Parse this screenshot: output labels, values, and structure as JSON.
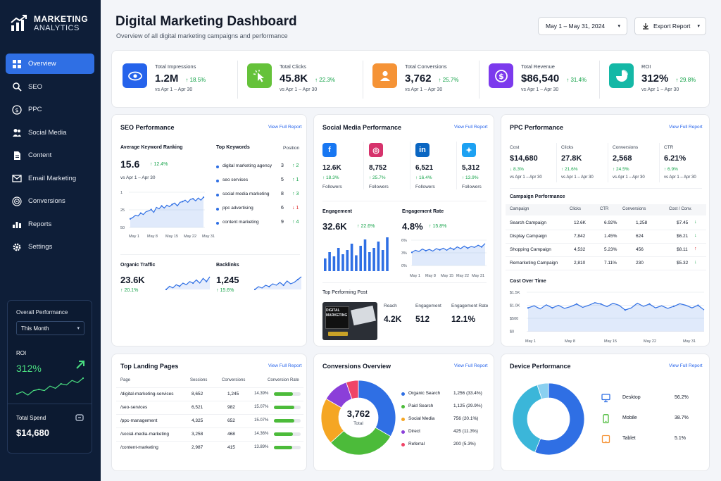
{
  "sidebar": {
    "brand_line1": "MARKETING",
    "brand_line2": "ANALYTICS",
    "items": [
      {
        "label": "Overview",
        "icon": "grid-icon"
      },
      {
        "label": "SEO",
        "icon": "search-icon"
      },
      {
        "label": "PPC",
        "icon": "dollar-icon"
      },
      {
        "label": "Social Media",
        "icon": "users-icon"
      },
      {
        "label": "Content",
        "icon": "document-icon"
      },
      {
        "label": "Email Marketing",
        "icon": "mail-icon"
      },
      {
        "label": "Conversions",
        "icon": "target-icon"
      },
      {
        "label": "Reports",
        "icon": "bar-chart-icon"
      },
      {
        "label": "Settings",
        "icon": "gear-icon"
      }
    ],
    "performance": {
      "heading": "Overall Performance",
      "period": "This Month",
      "roi_label": "ROI",
      "roi_value": "312%",
      "roi_spark": [
        10,
        12,
        9,
        13,
        14,
        13,
        17,
        15,
        19,
        18,
        22,
        20,
        24
      ],
      "spend_label": "Total Spend",
      "spend_value": "$14,680"
    }
  },
  "header": {
    "title": "Digital Marketing Dashboard",
    "subtitle": "Overview of all digital marketing campaigns and performance",
    "date_range": "May 1 – May 31, 2024",
    "export_label": "Export Report"
  },
  "kpis": [
    {
      "label": "Total Impressions",
      "value": "1.2M",
      "change": "↑ 18.5%",
      "sub": "vs Apr 1 – Apr 30",
      "color": "#2563eb"
    },
    {
      "label": "Total Clicks",
      "value": "45.8K",
      "change": "↑ 22.3%",
      "sub": "vs Apr 1 – Apr 30",
      "color": "#65c23a"
    },
    {
      "label": "Total Conversions",
      "value": "3,762",
      "change": "↑ 25.7%",
      "sub": "vs Apr 1 – Apr 30",
      "color": "#f59336"
    },
    {
      "label": "Total Revenue",
      "value": "$86,540",
      "change": "↑ 31.4%",
      "sub": "vs Apr 1 – Apr 30",
      "color": "#7c3aed"
    },
    {
      "label": "ROI",
      "value": "312%",
      "change": "↑ 29.8%",
      "sub": "vs Apr 1 – Apr 30",
      "color": "#14b8a6"
    }
  ],
  "view_full": "View Full Report",
  "seo": {
    "title": "SEO Performance",
    "akr_label": "Average Keyword Ranking",
    "akr_value": "15.6",
    "akr_change": "↑ 12.4%",
    "akr_sub": "vs Apr 1 – Apr 30",
    "chart": {
      "y_ticks": [
        "1",
        "25",
        "50"
      ],
      "x_ticks": [
        "May 1",
        "May 8",
        "May 15",
        "May 22",
        "May 31"
      ],
      "series": [
        38,
        36,
        33,
        34,
        30,
        32,
        28,
        27,
        25,
        29,
        22,
        24,
        20,
        23,
        19,
        21,
        18,
        16,
        20,
        15,
        14,
        12,
        15,
        11,
        10,
        13,
        9,
        12,
        8
      ]
    },
    "keywords_title": "Top Keywords",
    "position_label": "Position",
    "keywords": [
      {
        "kw": "digital marketing agency",
        "pos": "3",
        "chg": "↑ 2",
        "dir": "up"
      },
      {
        "kw": "seo services",
        "pos": "5",
        "chg": "↑ 1",
        "dir": "up"
      },
      {
        "kw": "social media marketing",
        "pos": "8",
        "chg": "↑ 3",
        "dir": "up"
      },
      {
        "kw": "ppc advertising",
        "pos": "6",
        "chg": "↓ 1",
        "dir": "down"
      },
      {
        "kw": "content marketing",
        "pos": "9",
        "chg": "↑ 4",
        "dir": "up"
      }
    ],
    "organic_label": "Organic Traffic",
    "organic_value": "23.6K",
    "organic_change": "↑ 20.1%",
    "organic_spark": [
      8,
      10,
      9,
      11,
      10,
      12,
      11,
      13,
      12,
      14,
      12,
      15,
      13,
      16
    ],
    "backlinks_label": "Backlinks",
    "backlinks_value": "1,245",
    "backlinks_change": "↑ 15.6%",
    "backlinks_spark": [
      7,
      9,
      8,
      10,
      9,
      11,
      10,
      12,
      10,
      13,
      11,
      12,
      14,
      16
    ]
  },
  "social": {
    "title": "Social Media Performance",
    "platforms": [
      {
        "name": "facebook-icon",
        "value": "12.6K",
        "change": "↑ 18.3%",
        "color": "#1877f2",
        "glyph": "f"
      },
      {
        "name": "instagram-icon",
        "value": "8,752",
        "change": "↑ 25.7%",
        "color": "#d6336c",
        "glyph": "◎"
      },
      {
        "name": "linkedin-icon",
        "value": "6,521",
        "change": "↑ 16.4%",
        "color": "#0a66c2",
        "glyph": "in"
      },
      {
        "name": "twitter-icon",
        "value": "5,312",
        "change": "↑ 13.9%",
        "color": "#1da1f2",
        "glyph": "✦"
      }
    ],
    "followers_label": "Followers",
    "engagement_label": "Engagement",
    "engagement_value": "32.6K",
    "engagement_change": "↑ 22.6%",
    "engagement_bars": [
      12,
      18,
      14,
      22,
      16,
      20,
      26,
      15,
      24,
      30,
      18,
      22,
      28,
      20,
      32
    ],
    "rate_label": "Engagement Rate",
    "rate_value": "4.8%",
    "rate_change": "↑ 15.8%",
    "rate_chart": {
      "y_ticks": [
        "6%",
        "3%",
        "0%"
      ],
      "x_ticks": [
        "May 1",
        "May 8",
        "May 15",
        "May 22",
        "May 31"
      ],
      "series": [
        3.1,
        3.6,
        3.3,
        3.9,
        3.5,
        3.8,
        3.4,
        4.0,
        3.7,
        4.1,
        3.6,
        4.2,
        3.8,
        4.4,
        4.0,
        4.6,
        4.1,
        4.5,
        4.3,
        4.8,
        4.4,
        5.2
      ]
    },
    "top_post_label": "Top Performing Post",
    "post_image_text": "DIGITAL MARKETING",
    "reach_label": "Reach",
    "reach_value": "4.2K",
    "post_eng_label": "Engagement",
    "post_eng_value": "512",
    "post_rate_label": "Engagement Rate",
    "post_rate_value": "12.1%"
  },
  "ppc": {
    "title": "PPC Performance",
    "metrics": [
      {
        "label": "Cost",
        "value": "$14,680",
        "change": "↓ 8.3%"
      },
      {
        "label": "Clicks",
        "value": "27.8K",
        "change": "↑ 21.6%"
      },
      {
        "label": "Conversions",
        "value": "2,568",
        "change": "↑ 24.5%"
      },
      {
        "label": "CTR",
        "value": "6.21%",
        "change": "↑ 6.9%"
      }
    ],
    "metric_sub": "vs Apr 1 – Apr 30",
    "campaign_title": "Campaign Performance",
    "campaign_headers": [
      "Campaign",
      "Clicks",
      "CTR",
      "Conversions",
      "Cost / Conv."
    ],
    "campaigns": [
      {
        "name": "Search Campaign",
        "clicks": "12.6K",
        "ctr": "6.92%",
        "conv": "1,258",
        "cost": "$7.45",
        "dir": "↓",
        "color": "#16a34a"
      },
      {
        "name": "Display Campaign",
        "clicks": "7,842",
        "ctr": "1.45%",
        "conv": "624",
        "cost": "$6.21",
        "dir": "↓",
        "color": "#16a34a"
      },
      {
        "name": "Shopping Campaign",
        "clicks": "4,532",
        "ctr": "5.23%",
        "conv": "456",
        "cost": "$8.11",
        "dir": "↑",
        "color": "#dc2626"
      },
      {
        "name": "Remarketing Campaign",
        "clicks": "2,810",
        "ctr": "7.11%",
        "conv": "230",
        "cost": "$5.32",
        "dir": "↓",
        "color": "#16a34a"
      }
    ],
    "cost_title": "Cost Over Time",
    "cost_chart": {
      "y_ticks": [
        "$1.5K",
        "$1.0K",
        "$500",
        "$0"
      ],
      "x_ticks": [
        "May 1",
        "May 8",
        "May 15",
        "May 22",
        "May 31"
      ],
      "series": [
        900,
        980,
        860,
        1020,
        900,
        1000,
        880,
        950,
        1050,
        920,
        1000,
        1100,
        1050,
        950,
        1080,
        1000,
        820,
        900,
        1080,
        960,
        1050,
        900,
        980,
        880,
        960,
        1060,
        1000,
        900,
        1000,
        820
      ]
    }
  },
  "landing": {
    "title": "Top Landing Pages",
    "headers": [
      "Page",
      "Sessions",
      "Conversions",
      "Conversion Rate"
    ],
    "rows": [
      {
        "page": "/digital-marketing-services",
        "sessions": "8,652",
        "conv": "1,245",
        "rate": "14.39%",
        "pct": 0.72
      },
      {
        "page": "/seo-services",
        "sessions": "6,521",
        "conv": "982",
        "rate": "15.07%",
        "pct": 0.75
      },
      {
        "page": "/ppc-management",
        "sessions": "4,325",
        "conv": "652",
        "rate": "15.07%",
        "pct": 0.75
      },
      {
        "page": "/social-media-marketing",
        "sessions": "3,258",
        "conv": "468",
        "rate": "14.36%",
        "pct": 0.72
      },
      {
        "page": "/content-marketing",
        "sessions": "2,987",
        "conv": "415",
        "rate": "13.89%",
        "pct": 0.69
      }
    ]
  },
  "conversions": {
    "title": "Conversions Overview",
    "total_value": "3,762",
    "total_label": "Total",
    "segments": [
      {
        "label": "Organic Search",
        "value": "1,256 (33.4%)",
        "pct": 33.4,
        "color": "#2f6fe4"
      },
      {
        "label": "Paid Search",
        "value": "1,125 (29.9%)",
        "pct": 29.9,
        "color": "#4cbb3a"
      },
      {
        "label": "Social Media",
        "value": "756 (20.1%)",
        "pct": 20.1,
        "color": "#f5a623"
      },
      {
        "label": "Direct",
        "value": "425 (11.3%)",
        "pct": 11.3,
        "color": "#8b3fd9"
      },
      {
        "label": "Referral",
        "value": "200 (5.3%)",
        "pct": 5.3,
        "color": "#ef4467"
      }
    ]
  },
  "devices": {
    "title": "Device Performance",
    "items": [
      {
        "label": "Desktop",
        "value": "56.2%",
        "pct": 56.2,
        "color": "#2f6fe4",
        "icon": "desktop-icon"
      },
      {
        "label": "Mobile",
        "value": "38.7%",
        "pct": 38.7,
        "color": "#4cbb3a",
        "icon": "mobile-icon"
      },
      {
        "label": "Tablet",
        "value": "5.1%",
        "pct": 5.1,
        "color": "#f59336",
        "icon": "tablet-icon"
      }
    ],
    "ring_colors": [
      "#2f6fe4",
      "#3bb6d9",
      "#8ad0f0"
    ],
    "ring_pcts": [
      56.2,
      38.7,
      5.1
    ]
  }
}
